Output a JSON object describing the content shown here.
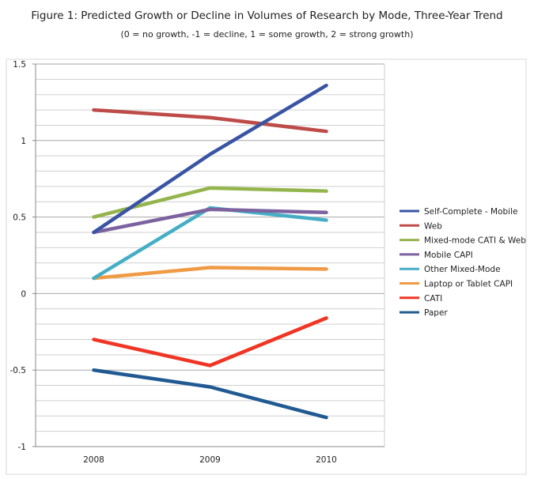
{
  "chart_data": {
    "type": "line",
    "title": "Figure 1: Predicted Growth or Decline in Volumes of Research by Mode, Three-Year Trend",
    "subtitle": "(0 = no growth, -1 = decline, 1 = some growth, 2 = strong growth)",
    "xlabel": "",
    "ylabel": "",
    "categories": [
      "2008",
      "2009",
      "2010"
    ],
    "ylim": [
      -1,
      1.5
    ],
    "yticks": [
      -1,
      -0.5,
      0,
      0.5,
      1,
      1.5
    ],
    "ytick_labels": [
      "-1",
      "-0.5",
      "0",
      "0.5",
      "1",
      "1.5"
    ],
    "minor_grid_step": 0.1,
    "grid": true,
    "legend_position": "right",
    "series": [
      {
        "name": "Self-Complete - Mobile",
        "color": "#3a54a4",
        "values": [
          0.4,
          0.91,
          1.36
        ]
      },
      {
        "name": "Web",
        "color": "#bd4b48",
        "values": [
          1.2,
          1.15,
          1.06
        ]
      },
      {
        "name": "Mixed-mode CATI & Web",
        "color": "#94b54e",
        "values": [
          0.5,
          0.69,
          0.67
        ]
      },
      {
        "name": "Mobile CAPI",
        "color": "#7d62a0",
        "values": [
          0.4,
          0.55,
          0.53
        ]
      },
      {
        "name": "Other Mixed-Mode",
        "color": "#45aec6",
        "values": [
          0.1,
          0.56,
          0.48
        ]
      },
      {
        "name": "Laptop or Tablet CAPI",
        "color": "#ef9a45",
        "values": [
          0.1,
          0.17,
          0.16
        ]
      },
      {
        "name": "CATI",
        "color": "#f03524",
        "values": [
          -0.3,
          -0.47,
          -0.16
        ]
      },
      {
        "name": "Paper",
        "color": "#215a92",
        "values": [
          -0.5,
          -0.61,
          -0.81
        ]
      }
    ]
  }
}
